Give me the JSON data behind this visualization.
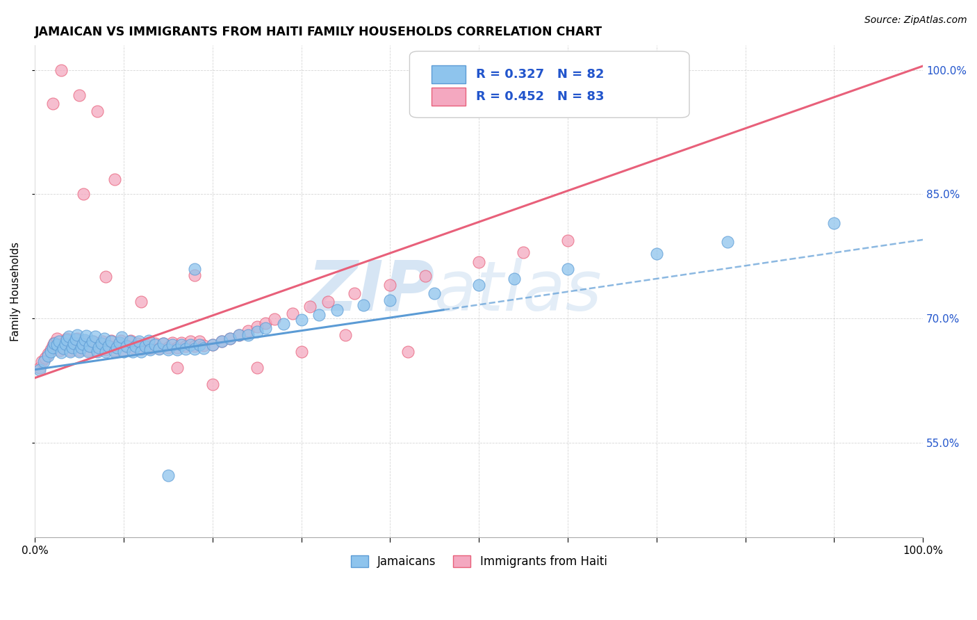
{
  "title": "JAMAICAN VS IMMIGRANTS FROM HAITI FAMILY HOUSEHOLDS CORRELATION CHART",
  "source": "Source: ZipAtlas.com",
  "ylabel": "Family Households",
  "ytick_labels": [
    "55.0%",
    "70.0%",
    "85.0%",
    "100.0%"
  ],
  "ytick_values": [
    0.55,
    0.7,
    0.85,
    1.0
  ],
  "xlim": [
    0.0,
    1.0
  ],
  "ylim": [
    0.435,
    1.03
  ],
  "color_blue": "#8EC4ED",
  "color_pink": "#F4A8C0",
  "line_blue": "#5B9BD5",
  "line_pink": "#E8607A",
  "watermark_zip": "ZIP",
  "watermark_atlas": "atlas",
  "title_fontsize": 12.5,
  "label_fontsize": 11,
  "tick_fontsize": 11,
  "source_fontsize": 10,
  "blue_scatter_x": [
    0.005,
    0.01,
    0.015,
    0.018,
    0.02,
    0.022,
    0.025,
    0.027,
    0.03,
    0.032,
    0.034,
    0.036,
    0.038,
    0.04,
    0.042,
    0.044,
    0.046,
    0.048,
    0.05,
    0.052,
    0.054,
    0.056,
    0.058,
    0.06,
    0.062,
    0.065,
    0.068,
    0.07,
    0.072,
    0.075,
    0.078,
    0.08,
    0.083,
    0.086,
    0.09,
    0.092,
    0.095,
    0.098,
    0.1,
    0.103,
    0.107,
    0.11,
    0.113,
    0.117,
    0.12,
    0.124,
    0.128,
    0.13,
    0.135,
    0.14,
    0.145,
    0.15,
    0.155,
    0.16,
    0.165,
    0.17,
    0.175,
    0.18,
    0.185,
    0.19,
    0.2,
    0.21,
    0.22,
    0.23,
    0.24,
    0.25,
    0.26,
    0.28,
    0.3,
    0.32,
    0.34,
    0.37,
    0.4,
    0.45,
    0.5,
    0.54,
    0.6,
    0.7,
    0.78,
    0.9,
    0.18,
    0.15
  ],
  "blue_scatter_y": [
    0.638,
    0.648,
    0.655,
    0.66,
    0.665,
    0.67,
    0.668,
    0.672,
    0.659,
    0.664,
    0.669,
    0.674,
    0.678,
    0.66,
    0.665,
    0.67,
    0.675,
    0.68,
    0.66,
    0.665,
    0.669,
    0.674,
    0.679,
    0.66,
    0.666,
    0.672,
    0.678,
    0.66,
    0.665,
    0.67,
    0.676,
    0.66,
    0.666,
    0.672,
    0.66,
    0.665,
    0.671,
    0.677,
    0.66,
    0.666,
    0.672,
    0.66,
    0.666,
    0.672,
    0.66,
    0.666,
    0.673,
    0.662,
    0.668,
    0.663,
    0.67,
    0.662,
    0.668,
    0.662,
    0.668,
    0.663,
    0.668,
    0.663,
    0.668,
    0.664,
    0.668,
    0.672,
    0.676,
    0.68,
    0.68,
    0.684,
    0.688,
    0.693,
    0.698,
    0.704,
    0.71,
    0.716,
    0.722,
    0.73,
    0.74,
    0.748,
    0.76,
    0.778,
    0.792,
    0.815,
    0.76,
    0.51
  ],
  "pink_scatter_x": [
    0.005,
    0.008,
    0.012,
    0.015,
    0.018,
    0.02,
    0.022,
    0.025,
    0.028,
    0.03,
    0.033,
    0.036,
    0.04,
    0.042,
    0.045,
    0.048,
    0.05,
    0.053,
    0.056,
    0.06,
    0.063,
    0.066,
    0.07,
    0.073,
    0.076,
    0.08,
    0.083,
    0.086,
    0.09,
    0.093,
    0.097,
    0.1,
    0.104,
    0.108,
    0.112,
    0.116,
    0.12,
    0.124,
    0.13,
    0.135,
    0.14,
    0.145,
    0.15,
    0.155,
    0.16,
    0.165,
    0.17,
    0.175,
    0.18,
    0.185,
    0.19,
    0.2,
    0.21,
    0.22,
    0.23,
    0.24,
    0.25,
    0.26,
    0.27,
    0.29,
    0.31,
    0.33,
    0.36,
    0.4,
    0.44,
    0.5,
    0.55,
    0.6,
    0.18,
    0.09,
    0.07,
    0.05,
    0.03,
    0.02,
    0.055,
    0.08,
    0.12,
    0.16,
    0.2,
    0.25,
    0.3,
    0.35,
    0.42
  ],
  "pink_scatter_y": [
    0.64,
    0.648,
    0.652,
    0.657,
    0.662,
    0.667,
    0.671,
    0.676,
    0.661,
    0.666,
    0.671,
    0.676,
    0.661,
    0.666,
    0.671,
    0.676,
    0.661,
    0.666,
    0.672,
    0.661,
    0.666,
    0.672,
    0.661,
    0.666,
    0.672,
    0.662,
    0.667,
    0.673,
    0.661,
    0.667,
    0.673,
    0.661,
    0.667,
    0.673,
    0.664,
    0.67,
    0.663,
    0.669,
    0.664,
    0.67,
    0.664,
    0.67,
    0.665,
    0.671,
    0.665,
    0.671,
    0.666,
    0.672,
    0.666,
    0.672,
    0.667,
    0.668,
    0.672,
    0.676,
    0.68,
    0.685,
    0.69,
    0.694,
    0.699,
    0.706,
    0.714,
    0.72,
    0.73,
    0.74,
    0.751,
    0.768,
    0.78,
    0.794,
    0.752,
    0.868,
    0.95,
    0.97,
    1.0,
    0.96,
    0.85,
    0.75,
    0.72,
    0.64,
    0.62,
    0.64,
    0.66,
    0.68,
    0.66
  ],
  "blue_line_y_start": 0.638,
  "blue_line_y_end": 0.795,
  "pink_line_y_start": 0.628,
  "pink_line_y_end": 1.005,
  "legend_blue_R": "0.327",
  "legend_blue_N": "82",
  "legend_pink_R": "0.452",
  "legend_pink_N": "83",
  "legend_text_color": "#2255CC",
  "right_tick_color": "#2255CC"
}
